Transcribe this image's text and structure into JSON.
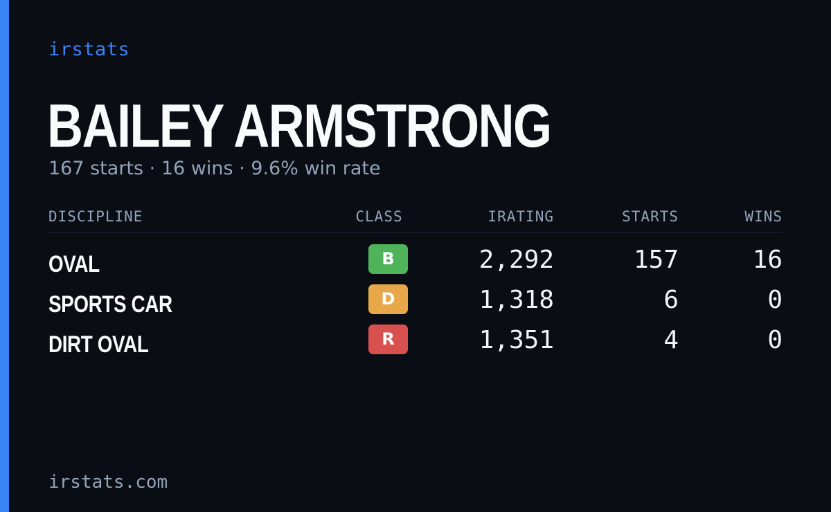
{
  "brand": "irstats",
  "driver": {
    "name": "BAILEY ARMSTRONG",
    "summary": "167 starts · 16 wins · 9.6% win rate"
  },
  "table": {
    "headers": {
      "discipline": "DISCIPLINE",
      "class": "CLASS",
      "irating": "IRATING",
      "starts": "STARTS",
      "wins": "WINS"
    },
    "rows": [
      {
        "discipline": "OVAL",
        "class": "B",
        "class_color": "#4fb35a",
        "irating": "2,292",
        "starts": "157",
        "wins": "16"
      },
      {
        "discipline": "SPORTS CAR",
        "class": "D",
        "class_color": "#e8a84a",
        "irating": "1,318",
        "starts": "6",
        "wins": "0"
      },
      {
        "discipline": "DIRT OVAL",
        "class": "R",
        "class_color": "#d9514e",
        "irating": "1,351",
        "starts": "4",
        "wins": "0"
      }
    ]
  },
  "footer": "irstats.com",
  "colors": {
    "accent": "#3b82f6",
    "background": "#0a0d14"
  }
}
